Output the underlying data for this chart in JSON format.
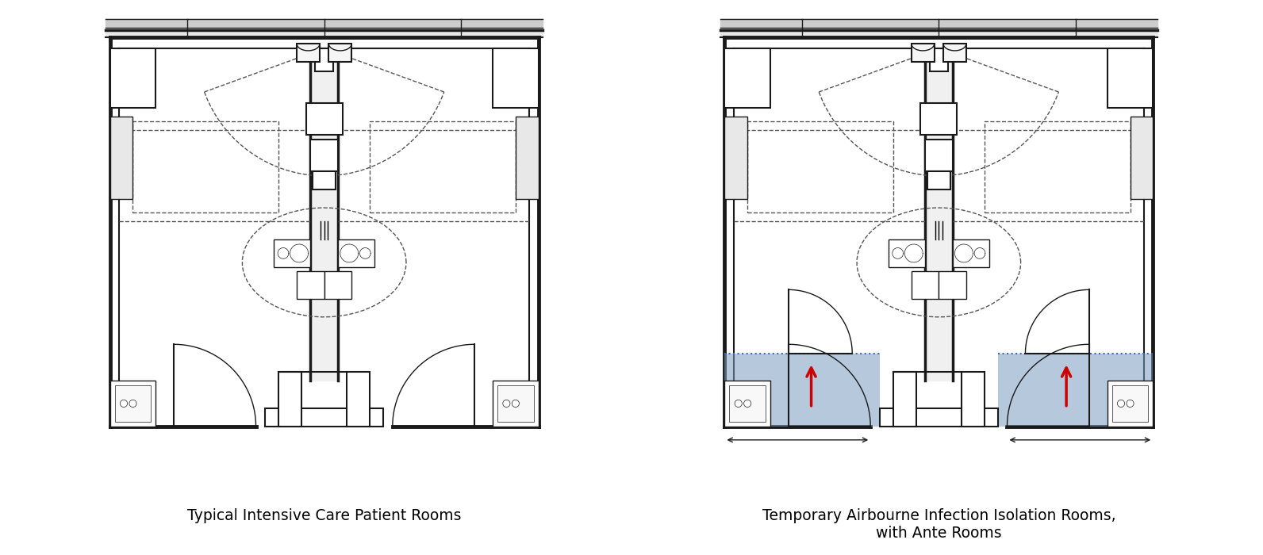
{
  "title_left": "Typical Intensive Care Patient Rooms",
  "title_right": "Temporary Airbourne Infection Isolation Rooms,\nwith Ante Rooms",
  "bg_color": "#ffffff",
  "wall_color": "#1a1a1a",
  "dash_color": "#555555",
  "blue_fill": "#7a9bbf",
  "blue_fill_alpha": 0.55,
  "arrow_color": "#cc0000",
  "gray_light": "#aaaaaa",
  "gray_med": "#666666",
  "lw_thick": 2.5,
  "lw_med": 1.5,
  "lw_thin": 1.0,
  "title_fontsize": 13.5,
  "fig_width": 15.92,
  "fig_height": 7.0
}
